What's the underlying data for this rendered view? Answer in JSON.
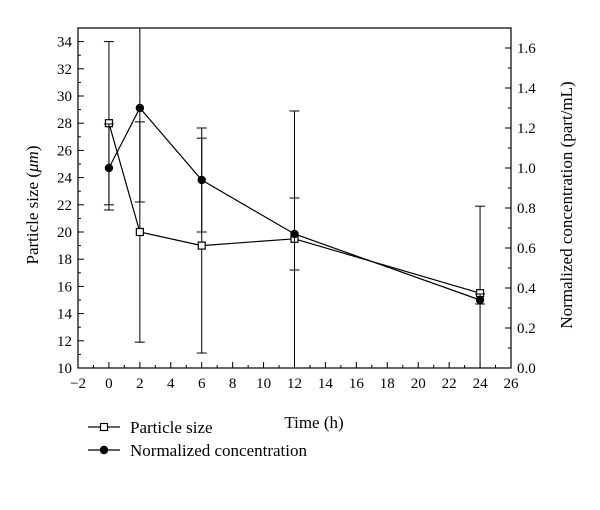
{
  "chart_data": {
    "type": "line",
    "xlabel": "Time (h)",
    "ylabel_left": "Particle size (",
    "ylabel_left_unit": "μm",
    "ylabel_left_end": ")",
    "ylabel_right": "Normalized concentration (part/mL)",
    "xlim": [
      -2,
      26
    ],
    "ylim_left": [
      10,
      35
    ],
    "ylim_right": [
      0.0,
      1.7
    ],
    "x_ticks": [
      -2,
      0,
      2,
      4,
      6,
      8,
      10,
      12,
      14,
      16,
      18,
      20,
      22,
      24,
      26
    ],
    "x_tick_labels": [
      "−2",
      "0",
      "2",
      "4",
      "6",
      "8",
      "10",
      "12",
      "14",
      "16",
      "18",
      "20",
      "22",
      "24",
      "26"
    ],
    "y_left_ticks": [
      10,
      12,
      14,
      16,
      18,
      20,
      22,
      24,
      26,
      28,
      30,
      32,
      34
    ],
    "y_left_tick_labels": [
      "10",
      "12",
      "14",
      "16",
      "18",
      "20",
      "22",
      "24",
      "26",
      "28",
      "30",
      "32",
      "34"
    ],
    "y_right_ticks": [
      0.0,
      0.2,
      0.4,
      0.6,
      0.8,
      1.0,
      1.2,
      1.4,
      1.6
    ],
    "y_right_tick_labels": [
      "0.0",
      "0.2",
      "0.4",
      "0.6",
      "0.8",
      "1.0",
      "1.2",
      "1.4",
      "1.6"
    ],
    "grid": false,
    "legend_position": "bottom-left",
    "series": [
      {
        "name": "Particle size",
        "axis": "left",
        "marker": "open-square",
        "x": [
          0,
          2,
          6,
          12,
          24
        ],
        "y": [
          28.0,
          20.0,
          19.0,
          19.5,
          15.5
        ],
        "err_low": [
          22.0,
          11.9,
          11.1,
          10.0,
          10.0
        ],
        "err_high": [
          34.0,
          28.1,
          26.9,
          28.9,
          21.9
        ]
      },
      {
        "name": "Normalized concentration",
        "axis": "right",
        "marker": "filled-circle",
        "x": [
          0,
          2,
          6,
          12,
          24
        ],
        "y": [
          1.0,
          1.3,
          0.94,
          0.67,
          0.34
        ],
        "err_low": [
          0.79,
          0.83,
          0.68,
          0.49,
          0.32
        ],
        "err_high": [
          1.22,
          1.7,
          1.2,
          0.85,
          0.37
        ]
      }
    ]
  }
}
